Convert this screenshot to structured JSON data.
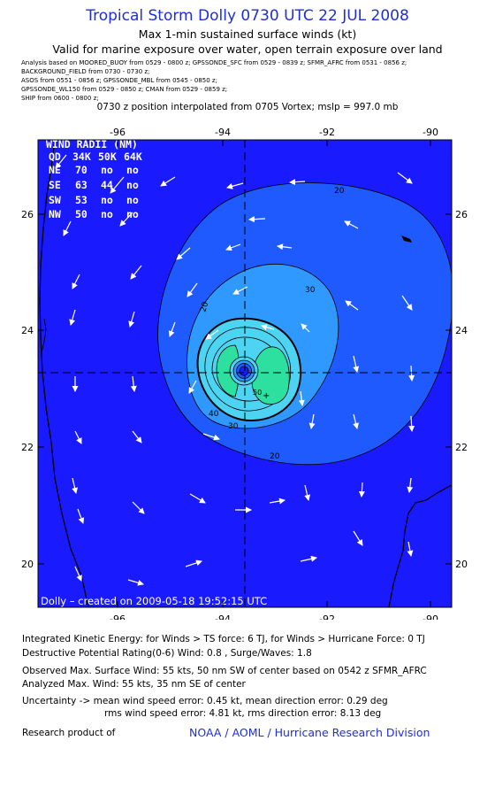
{
  "header": {
    "title": "Tropical Storm Dolly 0730 UTC 22 JUL 2008",
    "subtitle1": "Max 1-min sustained surface winds (kt)",
    "subtitle2": "Valid for marine exposure over water, open terrain exposure over land",
    "sources": [
      "Analysis based on   MOORED_BUOY from 0529 - 0800 z;   GPSSONDE_SFC from 0529 - 0839 z;   SFMR_AFRC from 0531 - 0856 z;",
      "BACKGROUND_FIELD from 0730 - 0730 z;",
      "ASOS from 0551 - 0856 z;   GPSSONDE_MBL from 0545 - 0850 z;",
      "GPSSONDE_WL150 from 0529 - 0850 z;   CMAN from 0529 - 0859 z;",
      "SHIP from 0600 - 0800 z;"
    ],
    "position_line": "0730 z position interpolated from 0705 Vortex; mslp = 997.0 mb"
  },
  "map": {
    "x_ticks": [
      "-96",
      "-94",
      "-92",
      "-90"
    ],
    "y_ticks": [
      "26",
      "24",
      "22",
      "20"
    ],
    "contour_labels": [
      "20",
      "20",
      "20",
      "30",
      "30",
      "40",
      "50"
    ],
    "wind_radii": {
      "title": "WIND RADII (NM)",
      "header": [
        "QD",
        "34K",
        "50K",
        "64K"
      ],
      "rows": [
        [
          "NE",
          "70",
          "no",
          "no"
        ],
        [
          "SE",
          "63",
          "44",
          "no"
        ],
        [
          "SW",
          "53",
          "no",
          "no"
        ],
        [
          "NW",
          "50",
          "no",
          "no"
        ]
      ]
    },
    "created_label": "Dolly – created on 2009-05-18 19:52:15 UTC",
    "colors": {
      "base": "#1a1aff",
      "l20": "#1f5aff",
      "l30": "#2f99ff",
      "l40": "#4cd4f2",
      "l50": "#2de0a0",
      "coast": "#000000"
    }
  },
  "footer": {
    "ike": "Integrated Kinetic Energy:  for Winds > TS force: 6 TJ,  for Winds > Hurricane Force: 0 TJ",
    "dpr": "Destructive Potential Rating(0-6)   Wind: 0.8 , Surge/Waves: 1.8",
    "obs": "Observed Max. Surface Wind: 55 kts, 50 nm SW of center based on 0542 z SFMR_AFRC",
    "analyzed": "Analyzed Max. Wind: 55 kts, 35 nm SE of center",
    "uncertainty1": "Uncertainty -> mean wind speed error: 0.45 kt,   mean direction error: 0.29 deg",
    "uncertainty2": "rms wind speed error: 4.81 kt,   rms direction error: 8.13 deg",
    "research_label": "Research product of",
    "research_org": "NOAA / AOML / Hurricane Research Division"
  }
}
